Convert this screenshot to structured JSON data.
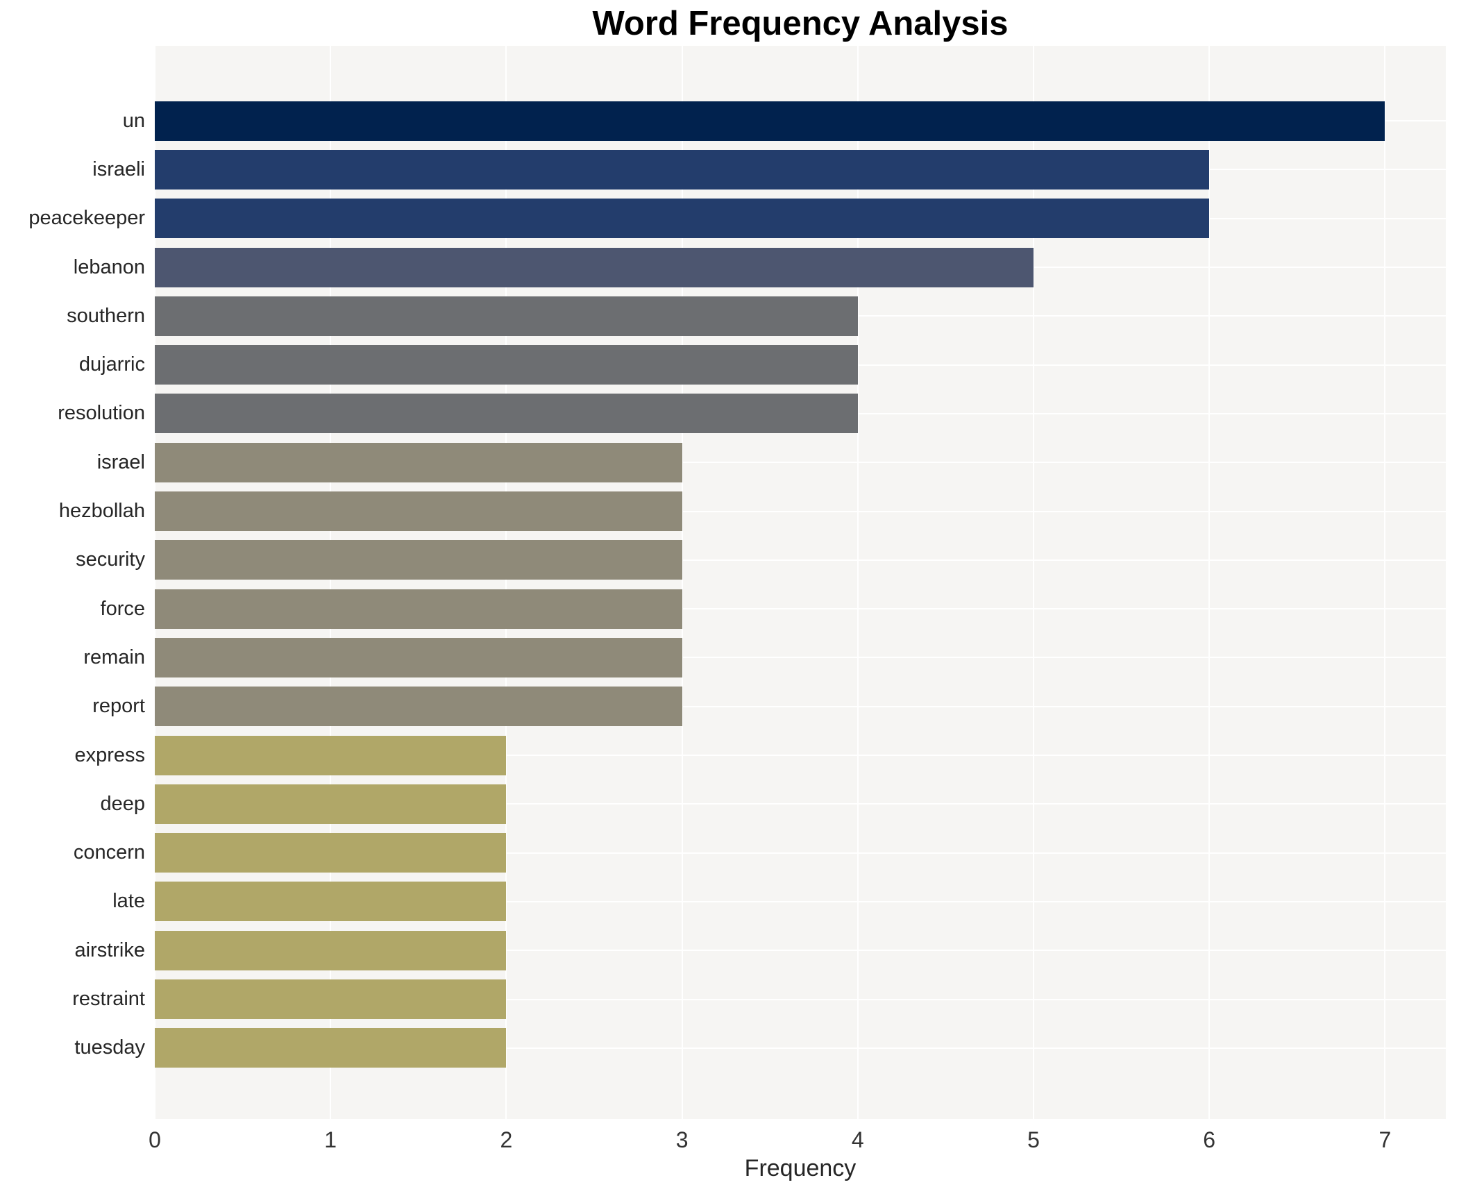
{
  "chart_data": {
    "type": "bar",
    "orientation": "horizontal",
    "title": "Word Frequency Analysis",
    "xlabel": "Frequency",
    "ylabel": "",
    "xlim": [
      0,
      7.35
    ],
    "xticks": [
      0,
      1,
      2,
      3,
      4,
      5,
      6,
      7
    ],
    "grid": true,
    "legend": false,
    "plot_background": "#f6f5f3",
    "gridline_color": "#ffffff",
    "title_color": "#000000",
    "label_color": "#262626",
    "tick_color": "#333333",
    "categories": [
      "un",
      "israeli",
      "peacekeeper",
      "lebanon",
      "southern",
      "dujarric",
      "resolution",
      "israel",
      "hezbollah",
      "security",
      "force",
      "remain",
      "report",
      "express",
      "deep",
      "concern",
      "late",
      "airstrike",
      "restraint",
      "tuesday"
    ],
    "values": [
      7,
      6,
      6,
      5,
      4,
      4,
      4,
      3,
      3,
      3,
      3,
      3,
      3,
      2,
      2,
      2,
      2,
      2,
      2,
      2
    ],
    "bars": [
      {
        "word": "un",
        "value": 7,
        "color": "#01224e"
      },
      {
        "word": "israeli",
        "value": 6,
        "color": "#233d6c"
      },
      {
        "word": "peacekeeper",
        "value": 6,
        "color": "#233d6c"
      },
      {
        "word": "lebanon",
        "value": 5,
        "color": "#4d5670"
      },
      {
        "word": "southern",
        "value": 4,
        "color": "#6c6e71"
      },
      {
        "word": "dujarric",
        "value": 4,
        "color": "#6c6e71"
      },
      {
        "word": "resolution",
        "value": 4,
        "color": "#6c6e71"
      },
      {
        "word": "israel",
        "value": 3,
        "color": "#8f8a79"
      },
      {
        "word": "hezbollah",
        "value": 3,
        "color": "#8f8a79"
      },
      {
        "word": "security",
        "value": 3,
        "color": "#8f8a79"
      },
      {
        "word": "force",
        "value": 3,
        "color": "#8f8a79"
      },
      {
        "word": "remain",
        "value": 3,
        "color": "#8f8a79"
      },
      {
        "word": "report",
        "value": 3,
        "color": "#8f8a79"
      },
      {
        "word": "express",
        "value": 2,
        "color": "#b0a768"
      },
      {
        "word": "deep",
        "value": 2,
        "color": "#b0a768"
      },
      {
        "word": "concern",
        "value": 2,
        "color": "#b0a768"
      },
      {
        "word": "late",
        "value": 2,
        "color": "#b0a768"
      },
      {
        "word": "airstrike",
        "value": 2,
        "color": "#b0a768"
      },
      {
        "word": "restraint",
        "value": 2,
        "color": "#b0a768"
      },
      {
        "word": "tuesday",
        "value": 2,
        "color": "#b0a768"
      }
    ]
  }
}
